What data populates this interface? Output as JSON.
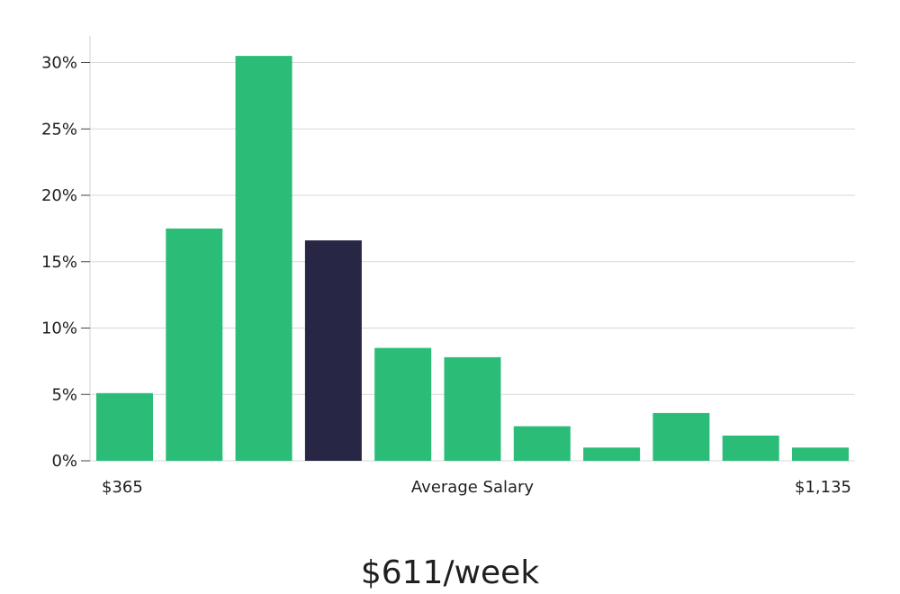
{
  "chart_data": {
    "type": "bar",
    "title": "",
    "xlabel": "Average Salary",
    "ylabel": "",
    "x_range_labels": {
      "min": "$365",
      "max": "$1,135"
    },
    "ylim": [
      0,
      32
    ],
    "y_ticks": [
      0,
      5,
      10,
      15,
      20,
      25,
      30
    ],
    "y_tick_labels": [
      "0%",
      "5%",
      "10%",
      "15%",
      "20%",
      "25%",
      "30%"
    ],
    "values": [
      5.1,
      17.5,
      30.5,
      16.6,
      8.5,
      7.8,
      2.6,
      1.0,
      3.6,
      1.9,
      1.0
    ],
    "highlight_index": 3,
    "colors": {
      "bar": "#2bbd77",
      "highlight": "#282645"
    },
    "grid": true,
    "legend": "none"
  },
  "summary": {
    "salary_text": "$611/week"
  }
}
